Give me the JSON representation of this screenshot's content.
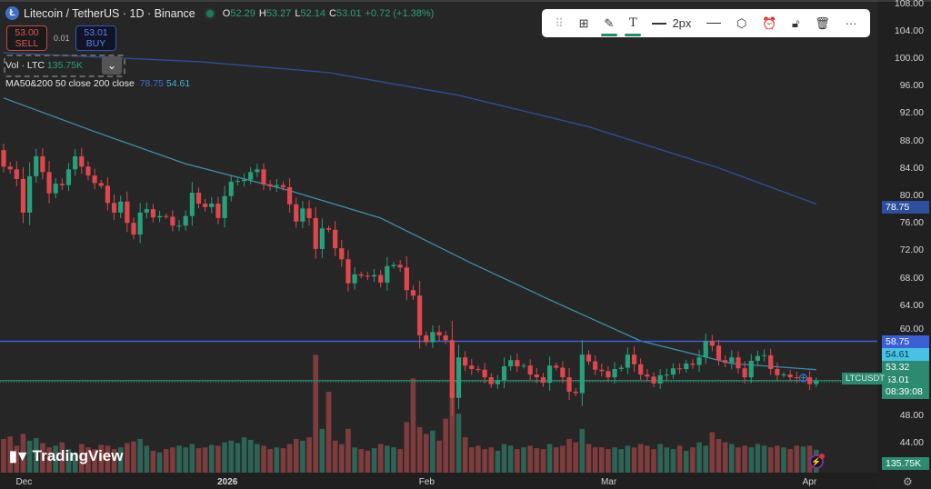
{
  "header": {
    "symbol_icon": "litecoin-logo",
    "title": "Litecoin / TetherUS · 1D · Binance",
    "status_color": "#1f7a5a",
    "o_label": "O",
    "o": "52.29",
    "h_label": "H",
    "h": "53.27",
    "l_label": "L",
    "l": "52.14",
    "c_label": "C",
    "c": "53.01",
    "change": "+0.72 (+1.38%)"
  },
  "trade": {
    "sell_price": "53.00",
    "sell_label": "SELL",
    "spread": "0.01",
    "buy_price": "53.01",
    "buy_label": "BUY"
  },
  "indicators": {
    "vol_label": "Vol · LTC",
    "vol_value": "135.75K",
    "ma_label": "MA50&200 50 close 200 close",
    "ma200_value": "78.75",
    "ma50_value": "54.61"
  },
  "toolbar": {
    "items": [
      {
        "icon": "drag-handle-icon"
      },
      {
        "icon": "templates-icon"
      },
      {
        "icon": "pencil-icon",
        "active": true
      },
      {
        "icon": "text-icon",
        "active": true
      },
      {
        "icon": "line-width-icon",
        "label": "2px"
      },
      {
        "icon": "line-style-icon"
      },
      {
        "icon": "settings-hexagon-icon"
      },
      {
        "icon": "add-alert-icon"
      },
      {
        "icon": "unlock-icon"
      },
      {
        "icon": "trash-icon"
      },
      {
        "icon": "more-icon"
      }
    ]
  },
  "branding": {
    "logo_text": "TradingView"
  },
  "price_labels": {
    "ma200": "78.75",
    "hline_blue": "58.75",
    "ma50": "54.61",
    "hline": "53.32",
    "last": "53.01",
    "countdown": "08:39:08",
    "symbol_tag": "LTCUSDT",
    "volume": "135.75K"
  },
  "colors": {
    "background": "#262626",
    "up": "#26a17b",
    "down": "#e0474c",
    "ma50": "#3a8fae",
    "ma200": "#2d4f9e",
    "hline_blue": "#3a5fd6",
    "price_line": "#2b8a6f"
  },
  "chart_data": {
    "type": "candlestick",
    "yticks": [
      108,
      104,
      100,
      96,
      92,
      88,
      84,
      80,
      76,
      72,
      68,
      64,
      60,
      48,
      44
    ],
    "ylim": [
      40,
      108.5
    ],
    "xticks": [
      {
        "label": "Dec",
        "index": 3
      },
      {
        "label": "2026",
        "index": 34
      },
      {
        "label": "Feb",
        "index": 65
      },
      {
        "label": "Mar",
        "index": 93
      },
      {
        "label": "Apr",
        "index": 124
      }
    ],
    "first_open": 86.6,
    "close": [
      84.2,
      83.8,
      82.4,
      77.5,
      82.8,
      85.7,
      83.4,
      80.3,
      81.7,
      81.5,
      83.8,
      85.7,
      84.2,
      82.9,
      81.8,
      81.4,
      78.9,
      77.5,
      79.1,
      76.0,
      74.3,
      77.5,
      78.0,
      76.8,
      77.0,
      76.9,
      75.6,
      75.6,
      77.0,
      80.4,
      78.8,
      78.3,
      78.8,
      76.7,
      79.9,
      82.0,
      82.1,
      82.3,
      83.4,
      83.8,
      81.6,
      81.3,
      81.5,
      81.2,
      78.7,
      76.2,
      78.1,
      76.7,
      72.2,
      75.2,
      75.0,
      72.3,
      70.7,
      67.2,
      68.5,
      68.3,
      68.2,
      68.4,
      67.3,
      69.7,
      69.9,
      69.5,
      66.2,
      65.4,
      59.6,
      58.6,
      60.1,
      59.6,
      58.9,
      50.5,
      56.4,
      55.2,
      54.7,
      54.6,
      53.5,
      52.5,
      53.1,
      55.1,
      56.0,
      55.1,
      55.2,
      53.9,
      53.5,
      52.7,
      55.2,
      54.9,
      53.5,
      51.4,
      51.2,
      56.8,
      55.8,
      54.6,
      54.4,
      53.5,
      54.7,
      54.9,
      56.8,
      55.4,
      53.9,
      53.6,
      52.6,
      53.8,
      53.9,
      54.8,
      54.7,
      55.5,
      55.3,
      56.4,
      58.8,
      58.1,
      56.0,
      55.6,
      56.4,
      54.8,
      53.5,
      55.9,
      56.6,
      56.7,
      54.7,
      53.8,
      53.9,
      53.5,
      53.4,
      53.5,
      52.5,
      53.01
    ],
    "volume_k": [
      200,
      215,
      160,
      230,
      190,
      205,
      175,
      150,
      160,
      180,
      140,
      120,
      170,
      150,
      140,
      165,
      160,
      140,
      150,
      175,
      185,
      200,
      160,
      130,
      120,
      140,
      150,
      160,
      150,
      170,
      145,
      150,
      165,
      160,
      180,
      190,
      175,
      210,
      195,
      170,
      160,
      140,
      150,
      145,
      170,
      200,
      190,
      210,
      700,
      260,
      480,
      190,
      170,
      260,
      150,
      140,
      130,
      145,
      170,
      160,
      150,
      140,
      300,
      560,
      270,
      230,
      250,
      190,
      320,
      700,
      350,
      210,
      150,
      160,
      140,
      150,
      130,
      170,
      160,
      140,
      150,
      160,
      145,
      140,
      170,
      150,
      160,
      200,
      180,
      260,
      170,
      150,
      150,
      140,
      150,
      140,
      160,
      150,
      170,
      160,
      140,
      170,
      150,
      140,
      160,
      130,
      150,
      180,
      160,
      240,
      200,
      180,
      170,
      150,
      160,
      150,
      170,
      160,
      150,
      160,
      150,
      140,
      160,
      155,
      160,
      135.75
    ],
    "ma50": [
      [
        0,
        94.2
      ],
      [
        14,
        89.3
      ],
      [
        28,
        84.6
      ],
      [
        44,
        80.7
      ],
      [
        58,
        76.7
      ],
      [
        72,
        70.1
      ],
      [
        84,
        64.8
      ],
      [
        98,
        58.8
      ],
      [
        112,
        55.5
      ],
      [
        125,
        54.61
      ]
    ],
    "ma200": [
      [
        0,
        100.8
      ],
      [
        30,
        99.5
      ],
      [
        50,
        97.9
      ],
      [
        70,
        94.6
      ],
      [
        90,
        90.0
      ],
      [
        110,
        84.0
      ],
      [
        125,
        78.75
      ]
    ],
    "hlines": [
      58.75,
      53.32
    ],
    "last_price": 53.01,
    "grid": false
  }
}
